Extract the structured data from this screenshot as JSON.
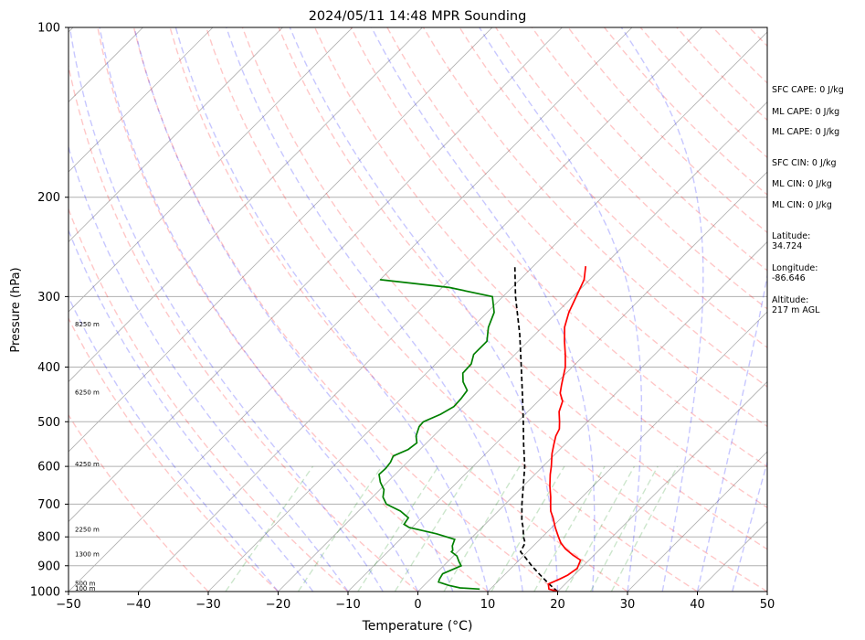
{
  "chart_data": {
    "type": "skewt",
    "title": "2024/05/11 14:48 MPR Sounding",
    "xlabel": "Temperature (°C)",
    "ylabel": "Pressure (hPa)",
    "xlim": [
      -50,
      50
    ],
    "ylim": [
      1000,
      100
    ],
    "y_scale": "log",
    "x_ticks": [
      "−50",
      "−40",
      "−30",
      "−20",
      "−10",
      "0",
      "10",
      "20",
      "30",
      "40",
      "50"
    ],
    "y_ticks": [
      "100",
      "200",
      "300",
      "400",
      "500",
      "600",
      "700",
      "800",
      "900",
      "1000"
    ],
    "grid": true,
    "temperature": {
      "color": "#ff0000",
      "points": [
        [
          1000,
          20
        ],
        [
          990,
          18.4
        ],
        [
          970,
          17.6
        ],
        [
          950,
          18.5
        ],
        [
          935,
          19.1
        ],
        [
          910,
          19.5
        ],
        [
          880,
          18.8
        ],
        [
          862,
          17.0
        ],
        [
          840,
          15.0
        ],
        [
          820,
          13.5
        ],
        [
          800,
          12.3
        ],
        [
          770,
          10.5
        ],
        [
          740,
          8.8
        ],
        [
          720,
          7.5
        ],
        [
          700,
          6.5
        ],
        [
          680,
          5.5
        ],
        [
          650,
          3.8
        ],
        [
          620,
          2.2
        ],
        [
          600,
          1.2
        ],
        [
          570,
          -0.5
        ],
        [
          550,
          -1.5
        ],
        [
          530,
          -2.5
        ],
        [
          515,
          -3.0
        ],
        [
          500,
          -4.0
        ],
        [
          480,
          -5.5
        ],
        [
          460,
          -6.5
        ],
        [
          445,
          -8.0
        ],
        [
          430,
          -9.0
        ],
        [
          400,
          -11.0
        ],
        [
          380,
          -12.8
        ],
        [
          360,
          -14.8
        ],
        [
          340,
          -16.8
        ],
        [
          320,
          -18.3
        ],
        [
          300,
          -19.5
        ],
        [
          280,
          -20.8
        ],
        [
          272,
          -21.7
        ],
        [
          265,
          -22.5
        ]
      ]
    },
    "dewpoint": {
      "color": "#008000",
      "points": [
        [
          990,
          8.5
        ],
        [
          985,
          5.5
        ],
        [
          975,
          3.5
        ],
        [
          962,
          1.6
        ],
        [
          950,
          1.3
        ],
        [
          930,
          1.0
        ],
        [
          900,
          2.5
        ],
        [
          885,
          1.6
        ],
        [
          865,
          0.5
        ],
        [
          850,
          -0.9
        ],
        [
          845,
          -0.9
        ],
        [
          830,
          -1.6
        ],
        [
          808,
          -2.2
        ],
        [
          790,
          -5.6
        ],
        [
          770,
          -10.4
        ],
        [
          760,
          -11.6
        ],
        [
          740,
          -11.9
        ],
        [
          720,
          -14.0
        ],
        [
          700,
          -17.0
        ],
        [
          680,
          -18.5
        ],
        [
          660,
          -19.4
        ],
        [
          640,
          -21.0
        ],
        [
          620,
          -22.3
        ],
        [
          605,
          -22.2
        ],
        [
          590,
          -22.4
        ],
        [
          575,
          -22.9
        ],
        [
          560,
          -21.7
        ],
        [
          545,
          -21.4
        ],
        [
          530,
          -22.5
        ],
        [
          510,
          -23.4
        ],
        [
          500,
          -23.5
        ],
        [
          485,
          -22.1
        ],
        [
          470,
          -21.3
        ],
        [
          455,
          -21.4
        ],
        [
          440,
          -21.7
        ],
        [
          425,
          -23.5
        ],
        [
          410,
          -24.8
        ],
        [
          395,
          -24.9
        ],
        [
          380,
          -25.9
        ],
        [
          360,
          -25.9
        ],
        [
          340,
          -27.7
        ],
        [
          320,
          -29.0
        ],
        [
          300,
          -31.5
        ],
        [
          289,
          -39.0
        ],
        [
          280,
          -50.0
        ]
      ]
    },
    "parcel": {
      "color": "#000000",
      "points": [
        [
          1000,
          20
        ],
        [
          970,
          17.7
        ],
        [
          930,
          14.8
        ],
        [
          900,
          12.6
        ],
        [
          870,
          10.5
        ],
        [
          850,
          9.0
        ],
        [
          840,
          8.8
        ],
        [
          820,
          8.4
        ],
        [
          800,
          7.3
        ],
        [
          770,
          5.9
        ],
        [
          750,
          4.8
        ],
        [
          700,
          2.4
        ],
        [
          650,
          0.0
        ],
        [
          600,
          -2.6
        ],
        [
          550,
          -5.8
        ],
        [
          500,
          -9.2
        ],
        [
          450,
          -13.0
        ],
        [
          400,
          -17.3
        ],
        [
          350,
          -22.2
        ],
        [
          300,
          -28.2
        ],
        [
          266,
          -32.5
        ]
      ]
    },
    "height_labels": [
      {
        "p": 1000,
        "text": "100 m"
      },
      {
        "p": 980,
        "text": "500 m"
      },
      {
        "p": 870,
        "text": "1300 m"
      },
      {
        "p": 786,
        "text": "2250 m"
      },
      {
        "p": 602,
        "text": "4250 m"
      },
      {
        "p": 449,
        "text": "6250 m"
      },
      {
        "p": 340,
        "text": "8250 m"
      }
    ],
    "background_lines": {
      "isotherm_color": "#b0b0b0",
      "dry_adiabat_color": "#ff0000",
      "moist_adiabat_color": "#0000ff",
      "mixing_ratio_color": "#008000"
    },
    "annotations": [
      "SFC CAPE: 0 J/kg",
      "ML CAPE: 0 J/kg",
      "ML CAPE: 0 J/kg",
      "SFC CIN: 0 J/kg",
      "ML CIN: 0 J/kg",
      "ML CIN: 0 J/kg",
      "Latitude:\n34.724",
      "Longitude:\n-86.646",
      "Altitude:\n217 m AGL"
    ]
  },
  "side_panel": {
    "sfc_cape": "SFC CAPE: 0 J/kg",
    "ml_cape_1": "ML CAPE: 0 J/kg",
    "ml_cape_2": "ML CAPE: 0 J/kg",
    "sfc_cin": "SFC CIN: 0 J/kg",
    "ml_cin_1": "ML CIN: 0 J/kg",
    "ml_cin_2": "ML CIN: 0 J/kg",
    "latitude_label": "Latitude:",
    "latitude_value": "34.724",
    "longitude_label": "Longitude:",
    "longitude_value": "-86.646",
    "altitude_label": "Altitude:",
    "altitude_value": "217 m AGL"
  }
}
